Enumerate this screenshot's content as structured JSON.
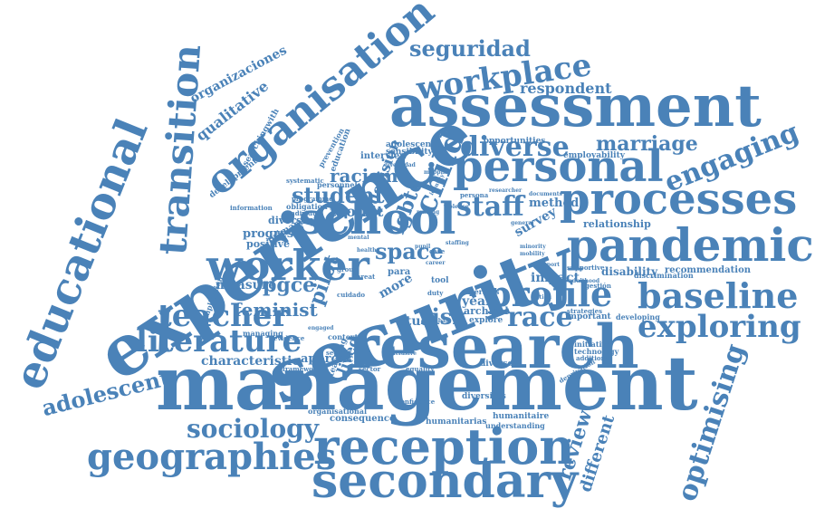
{
  "cloud": {
    "color": "#4a82b8",
    "background": "#ffffff",
    "words": [
      "management",
      "security",
      "research",
      "experience",
      "assessment",
      "reception",
      "secondary",
      "pandemic",
      "processes",
      "personal",
      "school",
      "educational",
      "transition",
      "organisation",
      "worker",
      "profile",
      "baseline",
      "geographies",
      "literature",
      "teacher",
      "exploring",
      "workplace",
      "engaging",
      "optimising",
      "seguridad",
      "adolescent",
      "sociology",
      "diverse",
      "marriage",
      "child",
      "student",
      "staff",
      "race",
      "risk",
      "space",
      "review",
      "different",
      "respondent",
      "organizaciones",
      "qualitative",
      "racism",
      "decision",
      "lgbtq",
      "feminist",
      "pgce",
      "pilot",
      "measure",
      "toolkit",
      "progress",
      "characteristic",
      "approach",
      "disability",
      "recommendation",
      "relationship",
      "method",
      "survey",
      "impact",
      "interview",
      "adolescence",
      "sensibility",
      "opportunities",
      "employability",
      "year",
      "archival",
      "explore",
      "study",
      "lived",
      "positive",
      "diversity",
      "primary",
      "more",
      "consequence",
      "humanitarias",
      "humanitaire",
      "understanding",
      "diversités",
      "organisational",
      "important",
      "initiative",
      "technology",
      "developing",
      "discrimination",
      "supportive",
      "strategies",
      "additional",
      "education",
      "prevention",
      "researchingwith",
      "development",
      "information",
      "personnel",
      "obligation",
      "individual",
      "systematic",
      "programme",
      "implication",
      "managing",
      "evidence",
      "framework",
      "teaching",
      "sector",
      "gestión",
      "adulthood",
      "deprivation",
      "confidence",
      "perfiles",
      "diversos",
      "equality",
      "cuidado",
      "threat",
      "para",
      "tool",
      "duty",
      "case",
      "pupil",
      "staffing",
      "health",
      "group",
      "context",
      "securit",
      "engaged",
      "inclusive",
      "mental",
      "career",
      "general",
      "documents",
      "persona",
      "researcher",
      "minority",
      "mobility",
      "trabajo",
      "diversidad",
      "mapping",
      "identity",
      "making",
      "violence",
      "support",
      "action"
    ]
  }
}
